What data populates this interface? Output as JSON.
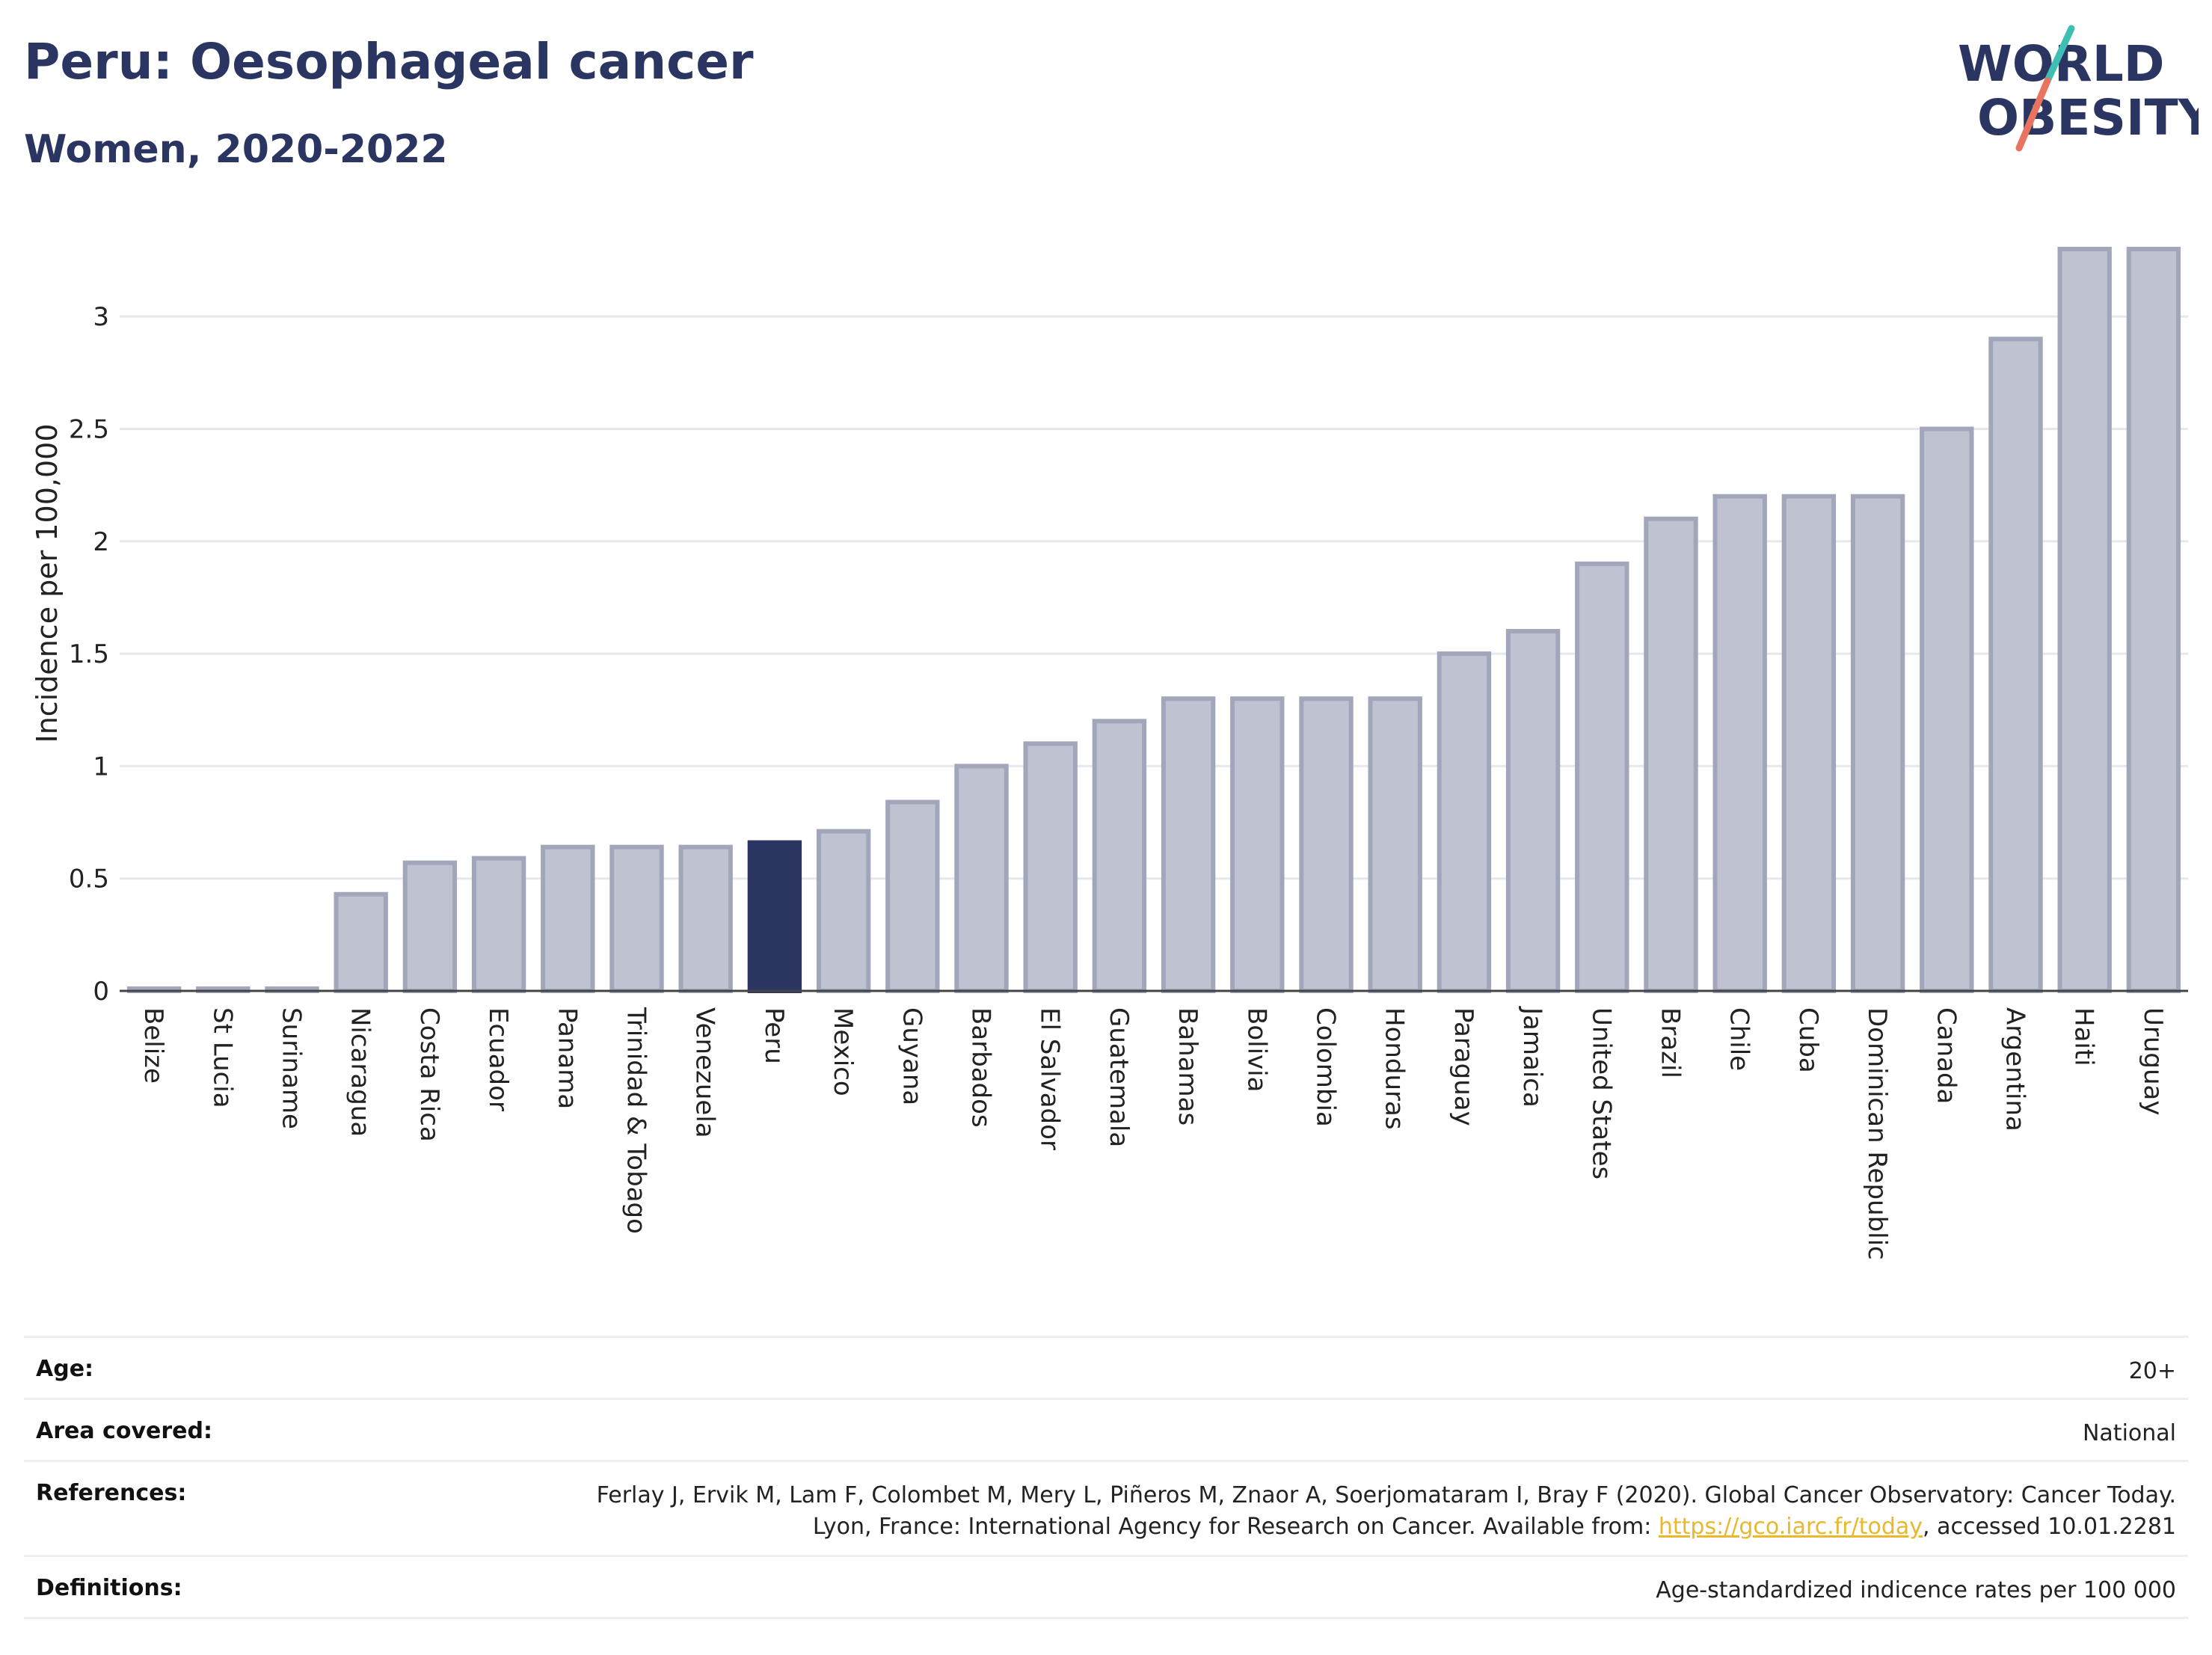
{
  "header": {
    "title": "Peru: Oesophageal cancer",
    "subtitle": "Women, 2020-2022"
  },
  "logo": {
    "line1": "WORLD",
    "line2": "OBESITY"
  },
  "colors": {
    "highlight": "#2a3561",
    "bar_fill": "#bfc3d1",
    "bar_stroke": "#a1a6bb",
    "grid": "#e6e8ee",
    "accent_teal": "#3dbfb3",
    "accent_coral": "#e8735e"
  },
  "chart_data": {
    "type": "bar",
    "title": "Peru: Oesophageal cancer",
    "subtitle": "Women, 2020-2022",
    "xlabel": "",
    "ylabel": "Incidence per 100,000",
    "ylim": [
      0,
      3.35
    ],
    "yticks": [
      0,
      0.5,
      1,
      1.5,
      2,
      2.5,
      3
    ],
    "ytick_labels": [
      "0",
      "0.5",
      "1",
      "1.5",
      "2",
      "2.5",
      "3"
    ],
    "grid": true,
    "highlight": "Peru",
    "categories": [
      "Belize",
      "St Lucia",
      "Suriname",
      "Nicaragua",
      "Costa Rica",
      "Ecuador",
      "Panama",
      "Trinidad & Tobago",
      "Venezuela",
      "Peru",
      "Mexico",
      "Guyana",
      "Barbados",
      "El Salvador",
      "Guatemala",
      "Bahamas",
      "Bolivia",
      "Colombia",
      "Honduras",
      "Paraguay",
      "Jamaica",
      "United States",
      "Brazil",
      "Chile",
      "Cuba",
      "Dominican Republic",
      "Canada",
      "Argentina",
      "Haiti",
      "Uruguay"
    ],
    "values": [
      0,
      0,
      0,
      0.43,
      0.57,
      0.59,
      0.64,
      0.64,
      0.64,
      0.66,
      0.71,
      0.84,
      1.0,
      1.1,
      1.2,
      1.3,
      1.3,
      1.3,
      1.3,
      1.5,
      1.6,
      1.9,
      2.1,
      2.2,
      2.2,
      2.2,
      2.5,
      2.9,
      3.3,
      3.3
    ]
  },
  "meta": {
    "age_label": "Age:",
    "age_value": "20+",
    "area_label": "Area covered:",
    "area_value": "National",
    "references_label": "References:",
    "references_text": "Ferlay J, Ervik M, Lam F, Colombet M, Mery L, Piñeros M, Znaor A, Soerjomataram I, Bray F (2020). Global Cancer Observatory: Cancer Today. Lyon, France: International Agency for Research on Cancer. Available from: ",
    "references_link": "https://gco.iarc.fr/today",
    "references_suffix": ", accessed 10.01.2281",
    "definitions_label": "Definitions:",
    "definitions_value": "Age-standardized indicence rates per 100 000"
  }
}
